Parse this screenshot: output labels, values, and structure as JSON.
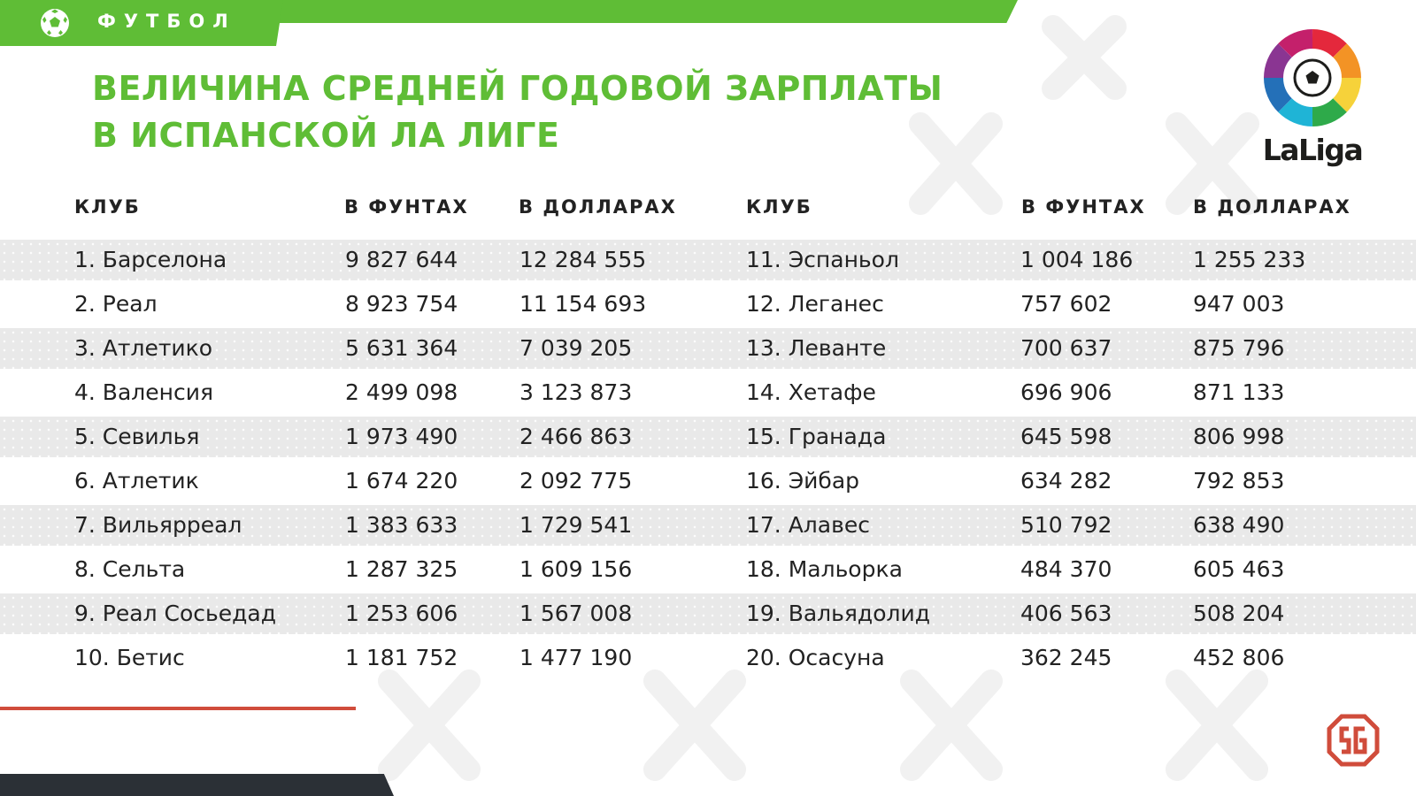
{
  "header": {
    "category": "ФУТБОЛ",
    "ball_icon": "soccer-ball-icon",
    "title_line1": "ВЕЛИЧИНА СРЕДНЕЙ ГОДОВОЙ ЗАРПЛАТЫ",
    "title_line2": "В ИСПАНСКОЙ ЛА ЛИГЕ"
  },
  "logo": {
    "text": "LaLiga"
  },
  "publisher_logo": {
    "icon": "sports-ru-logo-icon"
  },
  "colors": {
    "accent_green": "#5fbd36",
    "accent_red": "#d04c3b",
    "text": "#222222",
    "row_band": "#e9e9e9",
    "bottom_bar": "#2b3036"
  },
  "table": {
    "headers": [
      "КЛУБ",
      "В ФУНТАХ",
      "В ДОЛЛАРАХ",
      "КЛУБ",
      "В ФУНТАХ",
      "В ДОЛЛАРАХ"
    ],
    "left_rows": [
      [
        "1. Барселона",
        "9 827 644",
        "12 284 555"
      ],
      [
        "2. Реал",
        "8 923 754",
        "11 154 693"
      ],
      [
        "3. Атлетико",
        "5 631 364",
        "7 039 205"
      ],
      [
        "4. Валенсия",
        "2 499 098",
        "3 123 873"
      ],
      [
        "5. Севилья",
        "1 973 490",
        "2 466 863"
      ],
      [
        "6. Атлетик",
        "1 674 220",
        "2 092 775"
      ],
      [
        "7. Вильярреал",
        "1 383 633",
        "1 729 541"
      ],
      [
        "8. Сельта",
        "1 287 325",
        "1 609 156"
      ],
      [
        "9. Реал Сосьедад",
        "1 253 606",
        "1 567 008"
      ],
      [
        "10. Бетис",
        "1 181 752",
        "1 477 190"
      ]
    ],
    "right_rows": [
      [
        "11. Эспаньол",
        "1 004 186",
        "1 255 233"
      ],
      [
        "12. Леганес",
        "757 602",
        "947 003"
      ],
      [
        "13. Леванте",
        "700 637",
        "875 796"
      ],
      [
        "14. Хетафе",
        "696 906",
        "871 133"
      ],
      [
        "15. Гранада",
        "645 598",
        "806 998"
      ],
      [
        "16. Эйбар",
        "634 282",
        "792 853"
      ],
      [
        "17. Алавес",
        "510 792",
        "638 490"
      ],
      [
        "18. Мальорка",
        "484 370",
        "605 463"
      ],
      [
        "19. Вальядолид",
        "406 563",
        "508 204"
      ],
      [
        "20. Осасуна",
        "362 245",
        "452 806"
      ]
    ]
  }
}
